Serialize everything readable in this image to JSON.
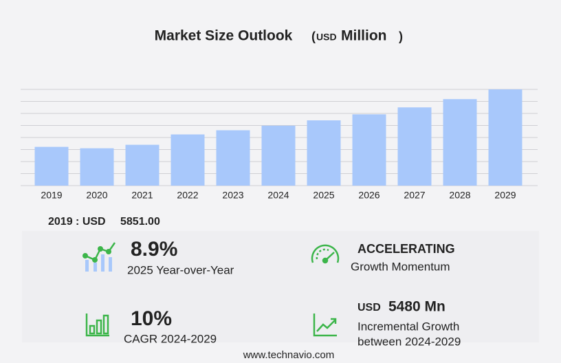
{
  "chart_data": {
    "type": "bar",
    "title": "Market Size Outlook",
    "unit_open": "(",
    "unit_currency": "USD",
    "unit_word": "Million",
    "unit_close": ")",
    "categories": [
      "2019",
      "2020",
      "2021",
      "2022",
      "2023",
      "2024",
      "2025",
      "2026",
      "2027",
      "2028",
      "2029"
    ],
    "values": [
      5851,
      5640,
      6165,
      7730,
      8360,
      9050,
      9855,
      10760,
      11810,
      13060,
      14530
    ],
    "color": "#a8c8fb",
    "ylim": [
      0,
      14530
    ],
    "grid": true
  },
  "highlight": {
    "label": "2019 : USD",
    "value": "5851.00"
  },
  "stats": [
    {
      "value": "8.9%",
      "caption": "2025 Year-over-Year"
    },
    {
      "value": "ACCELERATING",
      "caption": "Growth Momentum"
    },
    {
      "value": "10%",
      "caption": "CAGR 2024-2029"
    },
    {
      "currency": "USD",
      "value": "5480 Mn",
      "caption": "Incremental Growth",
      "caption2": "between 2024-2029"
    }
  ],
  "footer": "www.technavio.com"
}
